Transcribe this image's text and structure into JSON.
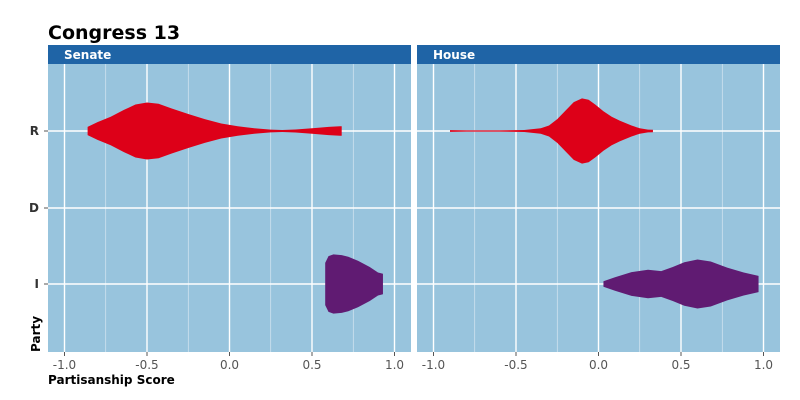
{
  "chart_data": {
    "type": "violin",
    "title": "Congress 13",
    "xlabel": "Partisanship Score",
    "ylabel": "Party",
    "xlim": [
      -1.1,
      1.1
    ],
    "x_ticks": [
      -1.0,
      -0.5,
      0.0,
      0.5,
      1.0
    ],
    "x_tick_labels": [
      "-1.0",
      "-0.5",
      "0.0",
      "0.5",
      "1.0"
    ],
    "y_categories": [
      "R",
      "D",
      "I"
    ],
    "grid": true,
    "background_color": "#98c4dd",
    "strip_color": "#1f64a6",
    "panels": [
      {
        "name": "Senate",
        "violins": [
          {
            "party": "R",
            "color": "#dd0018",
            "profile": [
              [
                -0.86,
                0.12
              ],
              [
                -0.8,
                0.26
              ],
              [
                -0.72,
                0.42
              ],
              [
                -0.64,
                0.62
              ],
              [
                -0.57,
                0.78
              ],
              [
                -0.5,
                0.84
              ],
              [
                -0.43,
                0.8
              ],
              [
                -0.35,
                0.66
              ],
              [
                -0.25,
                0.5
              ],
              [
                -0.15,
                0.35
              ],
              [
                -0.05,
                0.22
              ],
              [
                0.05,
                0.14
              ],
              [
                0.15,
                0.08
              ],
              [
                0.25,
                0.04
              ],
              [
                0.32,
                0.03
              ],
              [
                0.4,
                0.045
              ],
              [
                0.5,
                0.08
              ],
              [
                0.6,
                0.12
              ],
              [
                0.67,
                0.14
              ],
              [
                0.68,
                0.14
              ]
            ]
          },
          {
            "party": "I",
            "color": "#601b72",
            "profile": [
              [
                0.58,
                0.62
              ],
              [
                0.6,
                0.82
              ],
              [
                0.63,
                0.87
              ],
              [
                0.68,
                0.85
              ],
              [
                0.72,
                0.8
              ],
              [
                0.78,
                0.68
              ],
              [
                0.85,
                0.5
              ],
              [
                0.9,
                0.34
              ],
              [
                0.93,
                0.3
              ]
            ]
          }
        ]
      },
      {
        "name": "House",
        "violins": [
          {
            "party": "R",
            "color": "#dd0018",
            "profile": [
              [
                -0.9,
                0.025
              ],
              [
                -0.8,
                0.02
              ],
              [
                -0.6,
                0.02
              ],
              [
                -0.45,
                0.03
              ],
              [
                -0.35,
                0.08
              ],
              [
                -0.3,
                0.16
              ],
              [
                -0.25,
                0.35
              ],
              [
                -0.2,
                0.6
              ],
              [
                -0.15,
                0.85
              ],
              [
                -0.1,
                0.96
              ],
              [
                -0.06,
                0.92
              ],
              [
                -0.02,
                0.78
              ],
              [
                0.03,
                0.58
              ],
              [
                0.08,
                0.42
              ],
              [
                0.13,
                0.3
              ],
              [
                0.2,
                0.16
              ],
              [
                0.25,
                0.08
              ],
              [
                0.3,
                0.04
              ],
              [
                0.33,
                0.035
              ]
            ]
          },
          {
            "party": "I",
            "color": "#601b72",
            "profile": [
              [
                0.03,
                0.08
              ],
              [
                0.1,
                0.2
              ],
              [
                0.2,
                0.35
              ],
              [
                0.3,
                0.42
              ],
              [
                0.38,
                0.38
              ],
              [
                0.45,
                0.5
              ],
              [
                0.52,
                0.64
              ],
              [
                0.6,
                0.72
              ],
              [
                0.68,
                0.66
              ],
              [
                0.78,
                0.48
              ],
              [
                0.88,
                0.34
              ],
              [
                0.97,
                0.24
              ]
            ]
          }
        ]
      }
    ]
  }
}
